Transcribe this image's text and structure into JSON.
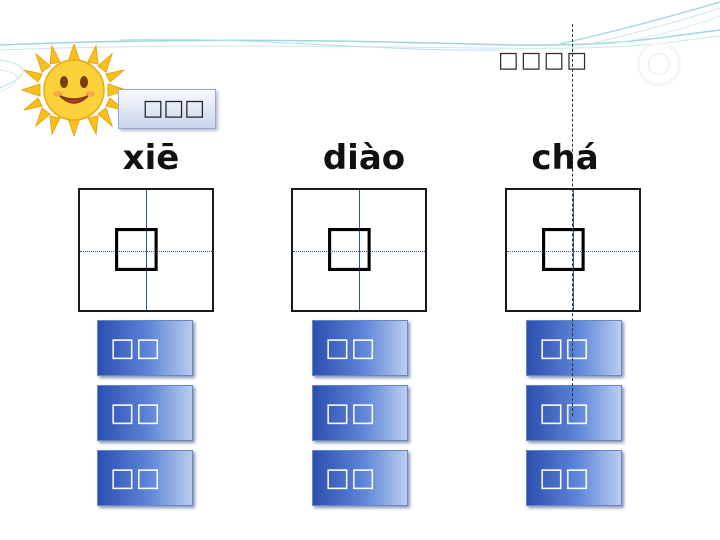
{
  "header": {
    "title": "□□□□"
  },
  "section": {
    "label": "□□□"
  },
  "characters": [
    {
      "pinyin": "xiē",
      "char": "□",
      "words": [
        "□□",
        "□□",
        "□□"
      ]
    },
    {
      "pinyin": "diào",
      "char": "□",
      "words": [
        "□□",
        "□□",
        "□□"
      ]
    },
    {
      "pinyin": "chá",
      "char": "□",
      "words": [
        "□□",
        "□□",
        "□□"
      ]
    }
  ],
  "colors": {
    "button_dark": "#2b4fb0",
    "button_light": "#b9cdf0",
    "line_teal": "#8fd0d8",
    "grid_line": "#2a5a9a"
  },
  "icons": {
    "sun": "sun-smiley-icon",
    "circle": "circle-button-icon"
  }
}
